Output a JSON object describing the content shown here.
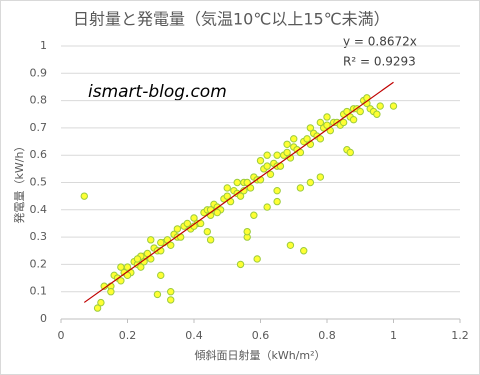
{
  "chart_data": {
    "type": "scatter",
    "title": "日射量と発電量（気温10℃以上15℃未満）",
    "x_label": "傾斜面日射量（kWh/m²）",
    "y_label": "発電量（kW/h）",
    "watermark": "ismart-blog.com",
    "xlim": [
      0,
      1.2
    ],
    "xticks": [
      0,
      0.2,
      0.4,
      0.6,
      0.8,
      1,
      1.2
    ],
    "ylim": [
      0,
      1
    ],
    "yticks": [
      0,
      0.1,
      0.2,
      0.3,
      0.4,
      0.5,
      0.6,
      0.7,
      0.8,
      0.9,
      1
    ],
    "grid": true,
    "color": "#ffff33",
    "edge_color": "#9ccc3c",
    "trendline": {
      "slope": 0.8672,
      "x_start": 0.07,
      "x_end": 1,
      "color": "#c00000",
      "label": "y = 0.8672x",
      "r2_label": "R² = 0.9293"
    },
    "x": [
      0.13,
      0.15,
      0.16,
      0.17,
      0.18,
      0.19,
      0.2,
      0.21,
      0.22,
      0.23,
      0.24,
      0.25,
      0.26,
      0.27,
      0.28,
      0.29,
      0.3,
      0.31,
      0.32,
      0.33,
      0.34,
      0.35,
      0.36,
      0.37,
      0.38,
      0.39,
      0.4,
      0.41,
      0.42,
      0.43,
      0.44,
      0.45,
      0.46,
      0.47,
      0.48,
      0.49,
      0.5,
      0.51,
      0.52,
      0.53,
      0.54,
      0.55,
      0.56,
      0.57,
      0.58,
      0.59,
      0.6,
      0.61,
      0.62,
      0.63,
      0.64,
      0.65,
      0.66,
      0.67,
      0.68,
      0.69,
      0.7,
      0.71,
      0.72,
      0.73,
      0.74,
      0.75,
      0.76,
      0.77,
      0.78,
      0.79,
      0.8,
      0.81,
      0.82,
      0.83,
      0.84,
      0.85,
      0.86,
      0.87,
      0.88,
      0.89,
      0.9,
      0.91,
      0.92,
      0.93,
      0.94,
      0.95,
      0.5,
      0.55,
      0.6,
      0.65,
      0.7,
      0.75,
      0.8,
      0.85,
      0.45,
      0.4,
      0.35,
      0.3,
      0.25,
      0.2,
      0.15,
      0.62,
      0.68,
      0.78,
      0.88,
      0.53,
      0.07,
      0.11,
      0.12,
      0.24,
      0.29,
      0.3,
      0.33,
      0.33,
      0.45,
      0.44,
      0.47,
      0.54,
      0.56,
      0.56,
      0.59,
      0.69,
      0.73,
      0.62,
      0.65,
      0.72,
      0.75,
      0.78,
      0.86,
      0.87,
      0.58,
      0.65,
      1.0,
      0.96,
      0.92,
      0.27,
      0.23,
      0.18
    ],
    "values": [
      0.12,
      0.12,
      0.16,
      0.15,
      0.14,
      0.17,
      0.19,
      0.17,
      0.21,
      0.2,
      0.19,
      0.23,
      0.24,
      0.22,
      0.26,
      0.25,
      0.25,
      0.28,
      0.29,
      0.27,
      0.31,
      0.3,
      0.3,
      0.34,
      0.35,
      0.33,
      0.37,
      0.35,
      0.35,
      0.39,
      0.4,
      0.38,
      0.42,
      0.41,
      0.4,
      0.44,
      0.45,
      0.43,
      0.47,
      0.46,
      0.45,
      0.5,
      0.5,
      0.48,
      0.52,
      0.51,
      0.51,
      0.55,
      0.56,
      0.53,
      0.57,
      0.56,
      0.56,
      0.6,
      0.61,
      0.59,
      0.63,
      0.62,
      0.61,
      0.65,
      0.66,
      0.64,
      0.68,
      0.67,
      0.66,
      0.7,
      0.71,
      0.69,
      0.72,
      0.72,
      0.71,
      0.75,
      0.76,
      0.74,
      0.77,
      0.77,
      0.76,
      0.8,
      0.79,
      0.77,
      0.76,
      0.75,
      0.48,
      0.47,
      0.58,
      0.6,
      0.66,
      0.7,
      0.74,
      0.72,
      0.4,
      0.34,
      0.33,
      0.28,
      0.21,
      0.16,
      0.1,
      0.6,
      0.64,
      0.72,
      0.73,
      0.5,
      0.45,
      0.04,
      0.06,
      0.23,
      0.09,
      0.16,
      0.07,
      0.1,
      0.29,
      0.32,
      0.39,
      0.2,
      0.3,
      0.32,
      0.22,
      0.27,
      0.25,
      0.41,
      0.43,
      0.48,
      0.5,
      0.52,
      0.62,
      0.61,
      0.38,
      0.47,
      0.78,
      0.78,
      0.81,
      0.29,
      0.22,
      0.19
    ]
  }
}
